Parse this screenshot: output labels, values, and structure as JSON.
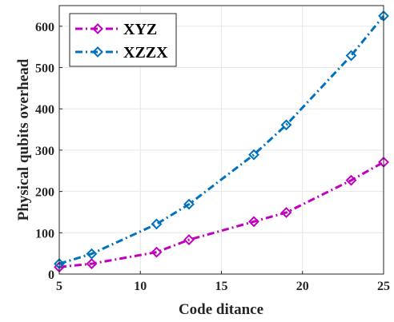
{
  "chart_data": {
    "type": "line",
    "title": "",
    "xlabel": "Code ditance",
    "ylabel": "Physical qubits overhead",
    "xlim": [
      5,
      25
    ],
    "ylim": [
      0,
      650
    ],
    "xticks": [
      5,
      10,
      15,
      20,
      25
    ],
    "yticks": [
      0,
      100,
      200,
      300,
      400,
      500,
      600
    ],
    "grid": true,
    "legend_position": "top-left",
    "series": [
      {
        "name": "XYZ",
        "color": "#bf00bf",
        "line_style": "dash-dot",
        "marker": "diamond",
        "x": [
          5,
          7,
          11,
          13,
          17,
          19,
          23,
          25
        ],
        "y": [
          17,
          25,
          53,
          83,
          127,
          149,
          227,
          271
        ]
      },
      {
        "name": "XZZX",
        "color": "#0072bd",
        "line_style": "dash-dot",
        "marker": "diamond",
        "x": [
          5,
          7,
          11,
          13,
          17,
          19,
          23,
          25
        ],
        "y": [
          25,
          49,
          121,
          169,
          289,
          361,
          529,
          625
        ]
      }
    ]
  }
}
